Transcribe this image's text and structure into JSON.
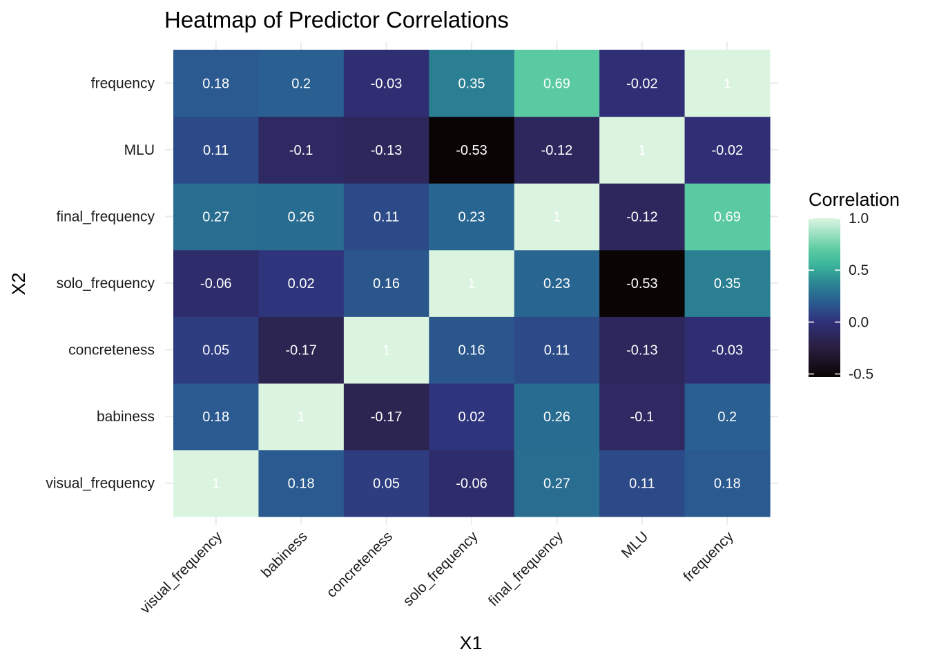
{
  "chart_data": {
    "type": "heatmap",
    "title": "Heatmap of Predictor Correlations",
    "xlabel": "X1",
    "ylabel": "X2",
    "x_categories": [
      "visual_frequency",
      "babiness",
      "concreteness",
      "solo_frequency",
      "final_frequency",
      "MLU",
      "frequency"
    ],
    "y_categories": [
      "visual_frequency",
      "babiness",
      "concreteness",
      "solo_frequency",
      "final_frequency",
      "MLU",
      "frequency"
    ],
    "highlighted_category": "visual_frequency",
    "highlight_color": "#ff0000",
    "cell_labels": [
      [
        "1",
        "0.18",
        "0.05",
        "-0.06",
        "0.27",
        "0.11",
        "0.18"
      ],
      [
        "0.18",
        "1",
        "-0.17",
        "0.02",
        "0.26",
        "-0.1",
        "0.2"
      ],
      [
        "0.05",
        "-0.17",
        "1",
        "0.16",
        "0.11",
        "-0.13",
        "-0.03"
      ],
      [
        "-0.06",
        "0.02",
        "0.16",
        "1",
        "0.23",
        "-0.53",
        "0.35"
      ],
      [
        "0.27",
        "0.26",
        "0.11",
        "0.23",
        "1",
        "-0.12",
        "0.69"
      ],
      [
        "0.11",
        "-0.1",
        "-0.13",
        "-0.53",
        "-0.12",
        "1",
        "-0.02"
      ],
      [
        "0.18",
        "0.2",
        "-0.03",
        "0.35",
        "0.69",
        "-0.02",
        "1"
      ]
    ],
    "legend": {
      "title": "Correlation",
      "position": "right",
      "ticks": [
        {
          "value": 1.0,
          "label": "1.0"
        },
        {
          "value": 0.5,
          "label": "0.5"
        },
        {
          "value": 0.0,
          "label": "0.0"
        },
        {
          "value": -0.5,
          "label": "-0.5"
        }
      ],
      "range": [
        -0.53,
        1.0
      ]
    },
    "color_scale": [
      {
        "value": -0.53,
        "color": "#0b0405"
      },
      {
        "value": -0.25,
        "color": "#2a1e3e"
      },
      {
        "value": 0.0,
        "color": "#30307a"
      },
      {
        "value": 0.2,
        "color": "#295f91"
      },
      {
        "value": 0.35,
        "color": "#2a7f92"
      },
      {
        "value": 0.55,
        "color": "#3ab59a"
      },
      {
        "value": 0.7,
        "color": "#5ccba1"
      },
      {
        "value": 1.0,
        "color": "#dbf4e0"
      }
    ],
    "grid": true
  }
}
